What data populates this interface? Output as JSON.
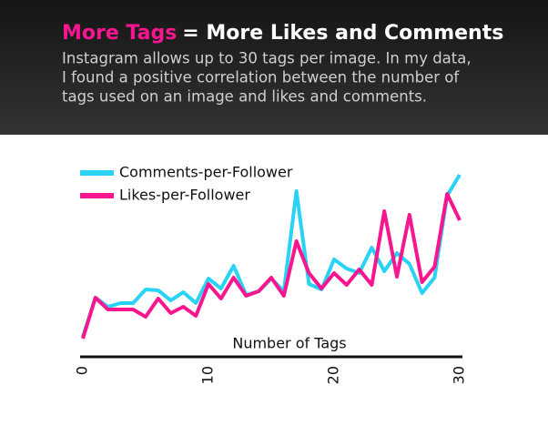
{
  "chart_data": {
    "type": "line",
    "title_parts": [
      "More Tags",
      "= More Likes and Comments"
    ],
    "subtitle_lines": [
      "Instagram allows up to 30 tags per image. In my data,",
      "I found a positive correlation between the number of",
      "tags used on an image and likes and comments."
    ],
    "x_label": "Number of Tags",
    "x": [
      0,
      1,
      2,
      3,
      4,
      5,
      6,
      7,
      8,
      9,
      10,
      11,
      12,
      13,
      14,
      15,
      16,
      17,
      18,
      19,
      20,
      21,
      22,
      23,
      24,
      25,
      26,
      27,
      28,
      29,
      30
    ],
    "xlim": [
      0,
      30
    ],
    "xticks": [
      0,
      10,
      20,
      30
    ],
    "series": [
      {
        "name": "Comments-per-Follower",
        "color": "#29d3f5",
        "values": [
          22,
          65,
          55,
          59,
          59,
          74,
          73,
          62,
          71,
          59,
          86,
          75,
          100,
          68,
          72,
          86,
          72,
          182,
          80,
          74,
          107,
          97,
          92,
          120,
          94,
          114,
          102,
          70,
          87,
          177,
          200
        ]
      },
      {
        "name": "Likes-per-Follower",
        "color": "#f7168f",
        "values": [
          20,
          65,
          52,
          52,
          52,
          44,
          64,
          48,
          55,
          45,
          80,
          64,
          87,
          67,
          72,
          87,
          67,
          127,
          92,
          75,
          92,
          79,
          96,
          79,
          160,
          88,
          156,
          82,
          99,
          179,
          150
        ]
      }
    ],
    "grid": false
  }
}
